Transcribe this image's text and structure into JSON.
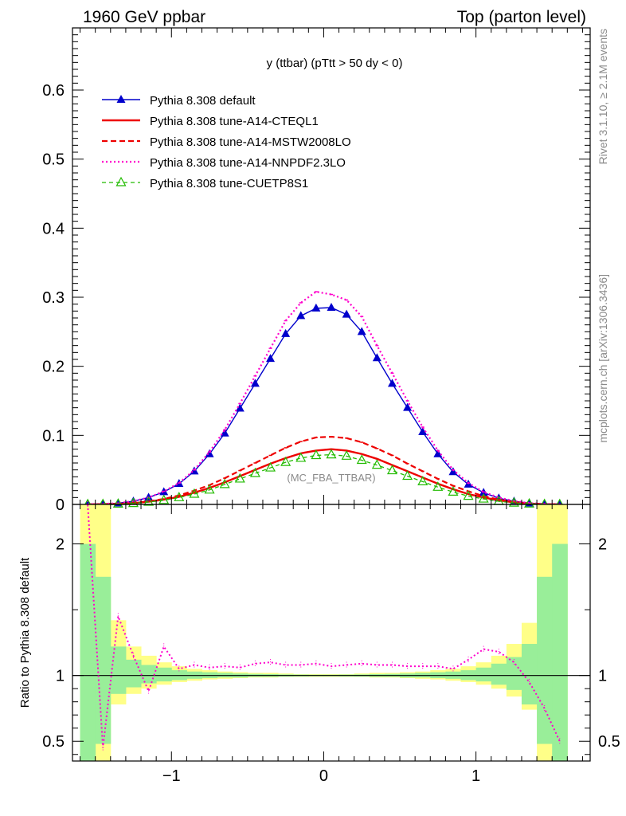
{
  "header": {
    "left": "1960 GeV ppbar",
    "right": "Top (parton level)"
  },
  "side": {
    "rivet": "Rivet 3.1.10, ≥ 2.1M events",
    "mcplots": "mcplots.cern.ch [arXiv:1306.3436]"
  },
  "chart_data": [
    {
      "type": "line",
      "title": "y (ttbar) (pTtt > 50 dy < 0)",
      "annotation": "(MC_FBA_TTBAR)",
      "xlim": [
        -1.65,
        1.75
      ],
      "ylim": [
        0,
        0.69
      ],
      "xticks": [
        -1,
        0,
        1
      ],
      "xtick_labels": [
        "−1",
        "0",
        "1"
      ],
      "yticks": [
        0,
        0.1,
        0.2,
        0.3,
        0.4,
        0.5,
        0.6
      ],
      "ytick_labels": [
        "0",
        "0.1",
        "0.2",
        "0.3",
        "0.4",
        "0.5",
        "0.6"
      ],
      "legend_position": "top-left",
      "x": [
        -1.55,
        -1.45,
        -1.35,
        -1.25,
        -1.15,
        -1.05,
        -0.95,
        -0.85,
        -0.75,
        -0.65,
        -0.55,
        -0.45,
        -0.35,
        -0.25,
        -0.15,
        -0.05,
        0.05,
        0.15,
        0.25,
        0.35,
        0.45,
        0.55,
        0.65,
        0.75,
        0.85,
        0.95,
        1.05,
        1.15,
        1.25,
        1.35,
        1.45,
        1.55
      ],
      "series": [
        {
          "name": "Pythia 8.308 default",
          "color": "#0000cc",
          "style": "solid-triangle",
          "values": [
            0.0002,
            0.0006,
            0.0018,
            0.0045,
            0.01,
            0.018,
            0.03,
            0.048,
            0.073,
            0.103,
            0.139,
            0.175,
            0.211,
            0.247,
            0.273,
            0.284,
            0.285,
            0.275,
            0.25,
            0.212,
            0.175,
            0.14,
            0.105,
            0.073,
            0.047,
            0.029,
            0.017,
            0.009,
            0.0045,
            0.0018,
            0.0006,
            0.0002
          ]
        },
        {
          "name": "Pythia 8.308 tune-A14-CTEQL1",
          "color": "#ee0000",
          "style": "solid",
          "values": [
            0.0001,
            0.0003,
            0.0008,
            0.0018,
            0.004,
            0.007,
            0.011,
            0.017,
            0.024,
            0.032,
            0.041,
            0.05,
            0.059,
            0.067,
            0.074,
            0.078,
            0.08,
            0.078,
            0.073,
            0.066,
            0.057,
            0.048,
            0.039,
            0.03,
            0.022,
            0.015,
            0.01,
            0.006,
            0.003,
            0.0012,
            0.0004,
            0.0001
          ]
        },
        {
          "name": "Pythia 8.308 tune-A14-MSTW2008LO",
          "color": "#ee0000",
          "style": "dashed",
          "values": [
            0.0001,
            0.0004,
            0.001,
            0.0022,
            0.0045,
            0.008,
            0.013,
            0.02,
            0.028,
            0.038,
            0.049,
            0.06,
            0.071,
            0.082,
            0.091,
            0.097,
            0.098,
            0.096,
            0.09,
            0.081,
            0.071,
            0.059,
            0.048,
            0.037,
            0.027,
            0.019,
            0.012,
            0.007,
            0.0035,
            0.0015,
            0.0005,
            0.0001
          ]
        },
        {
          "name": "Pythia 8.308 tune-A14-NNPDF2.3LO",
          "color": "#ff00cc",
          "style": "dotted",
          "values": [
            0.0003,
            0.0007,
            0.0019,
            0.0048,
            0.01,
            0.019,
            0.031,
            0.05,
            0.076,
            0.108,
            0.146,
            0.186,
            0.226,
            0.266,
            0.292,
            0.308,
            0.304,
            0.296,
            0.272,
            0.23,
            0.19,
            0.15,
            0.112,
            0.078,
            0.05,
            0.031,
            0.018,
            0.01,
            0.005,
            0.002,
            0.0007,
            0.0003
          ]
        },
        {
          "name": "Pythia 8.308 tune-CUETP8S1",
          "color": "#22bb00",
          "style": "dashed-open-triangle",
          "values": [
            0.0001,
            0.0003,
            0.0007,
            0.0016,
            0.0035,
            0.006,
            0.01,
            0.015,
            0.021,
            0.029,
            0.037,
            0.045,
            0.053,
            0.061,
            0.067,
            0.071,
            0.072,
            0.07,
            0.064,
            0.057,
            0.049,
            0.041,
            0.033,
            0.025,
            0.018,
            0.012,
            0.008,
            0.0045,
            0.0022,
            0.0009,
            0.0003,
            0.0001
          ]
        }
      ]
    },
    {
      "type": "line",
      "ylabel": "Ratio to Pythia 8.308 default",
      "xlim": [
        -1.65,
        1.75
      ],
      "ylim": [
        0.35,
        2.3
      ],
      "yticks": [
        0.5,
        1,
        2
      ],
      "ytick_labels": [
        "0.5",
        "1",
        "2"
      ],
      "xticks": [
        -1,
        0,
        1
      ],
      "xtick_labels": [
        "−1",
        "0",
        "1"
      ],
      "x": [
        -1.55,
        -1.45,
        -1.35,
        -1.25,
        -1.15,
        -1.05,
        -0.95,
        -0.85,
        -0.75,
        -0.65,
        -0.55,
        -0.45,
        -0.35,
        -0.25,
        -0.15,
        -0.05,
        0.05,
        0.15,
        0.25,
        0.35,
        0.45,
        0.55,
        0.65,
        0.75,
        0.85,
        0.95,
        1.05,
        1.15,
        1.25,
        1.35,
        1.45,
        1.55
      ],
      "band_yellow": {
        "color": "#ffff88",
        "lo": [
          0.35,
          0.35,
          0.78,
          0.86,
          0.9,
          0.93,
          0.95,
          0.96,
          0.97,
          0.975,
          0.98,
          0.985,
          0.985,
          0.99,
          0.99,
          0.99,
          0.99,
          0.99,
          0.99,
          0.985,
          0.985,
          0.98,
          0.975,
          0.97,
          0.96,
          0.95,
          0.93,
          0.9,
          0.84,
          0.74,
          0.35,
          0.35
        ],
        "hi": [
          2.3,
          2.3,
          1.42,
          1.22,
          1.15,
          1.1,
          1.07,
          1.05,
          1.04,
          1.03,
          1.025,
          1.02,
          1.02,
          1.015,
          1.01,
          1.01,
          1.01,
          1.01,
          1.015,
          1.02,
          1.02,
          1.025,
          1.03,
          1.04,
          1.05,
          1.07,
          1.1,
          1.15,
          1.24,
          1.4,
          2.3,
          2.3
        ]
      },
      "band_green": {
        "color": "#99ee99",
        "lo": [
          0.35,
          0.48,
          0.86,
          0.91,
          0.94,
          0.955,
          0.965,
          0.975,
          0.98,
          0.985,
          0.985,
          0.99,
          0.99,
          0.992,
          0.993,
          0.994,
          0.994,
          0.993,
          0.992,
          0.99,
          0.99,
          0.985,
          0.985,
          0.98,
          0.975,
          0.965,
          0.955,
          0.93,
          0.89,
          0.78,
          0.48,
          0.35
        ],
        "hi": [
          2.0,
          1.75,
          1.22,
          1.12,
          1.08,
          1.06,
          1.04,
          1.03,
          1.025,
          1.02,
          1.015,
          1.012,
          1.01,
          1.008,
          1.007,
          1.006,
          1.006,
          1.007,
          1.008,
          1.01,
          1.012,
          1.015,
          1.02,
          1.025,
          1.03,
          1.04,
          1.06,
          1.09,
          1.14,
          1.24,
          1.75,
          2.0
        ]
      },
      "reference_line": 1,
      "series": [
        {
          "name": "Pythia 8.308 tune-A14-NNPDF2.3LO",
          "color": "#ff00cc",
          "style": "dotted",
          "values": [
            2.3,
            0.45,
            1.45,
            1.15,
            0.88,
            1.22,
            1.05,
            1.08,
            1.06,
            1.07,
            1.06,
            1.09,
            1.1,
            1.08,
            1.08,
            1.09,
            1.07,
            1.08,
            1.09,
            1.08,
            1.08,
            1.07,
            1.07,
            1.07,
            1.05,
            1.12,
            1.2,
            1.18,
            1.1,
            0.95,
            0.75,
            0.5
          ]
        }
      ]
    }
  ]
}
